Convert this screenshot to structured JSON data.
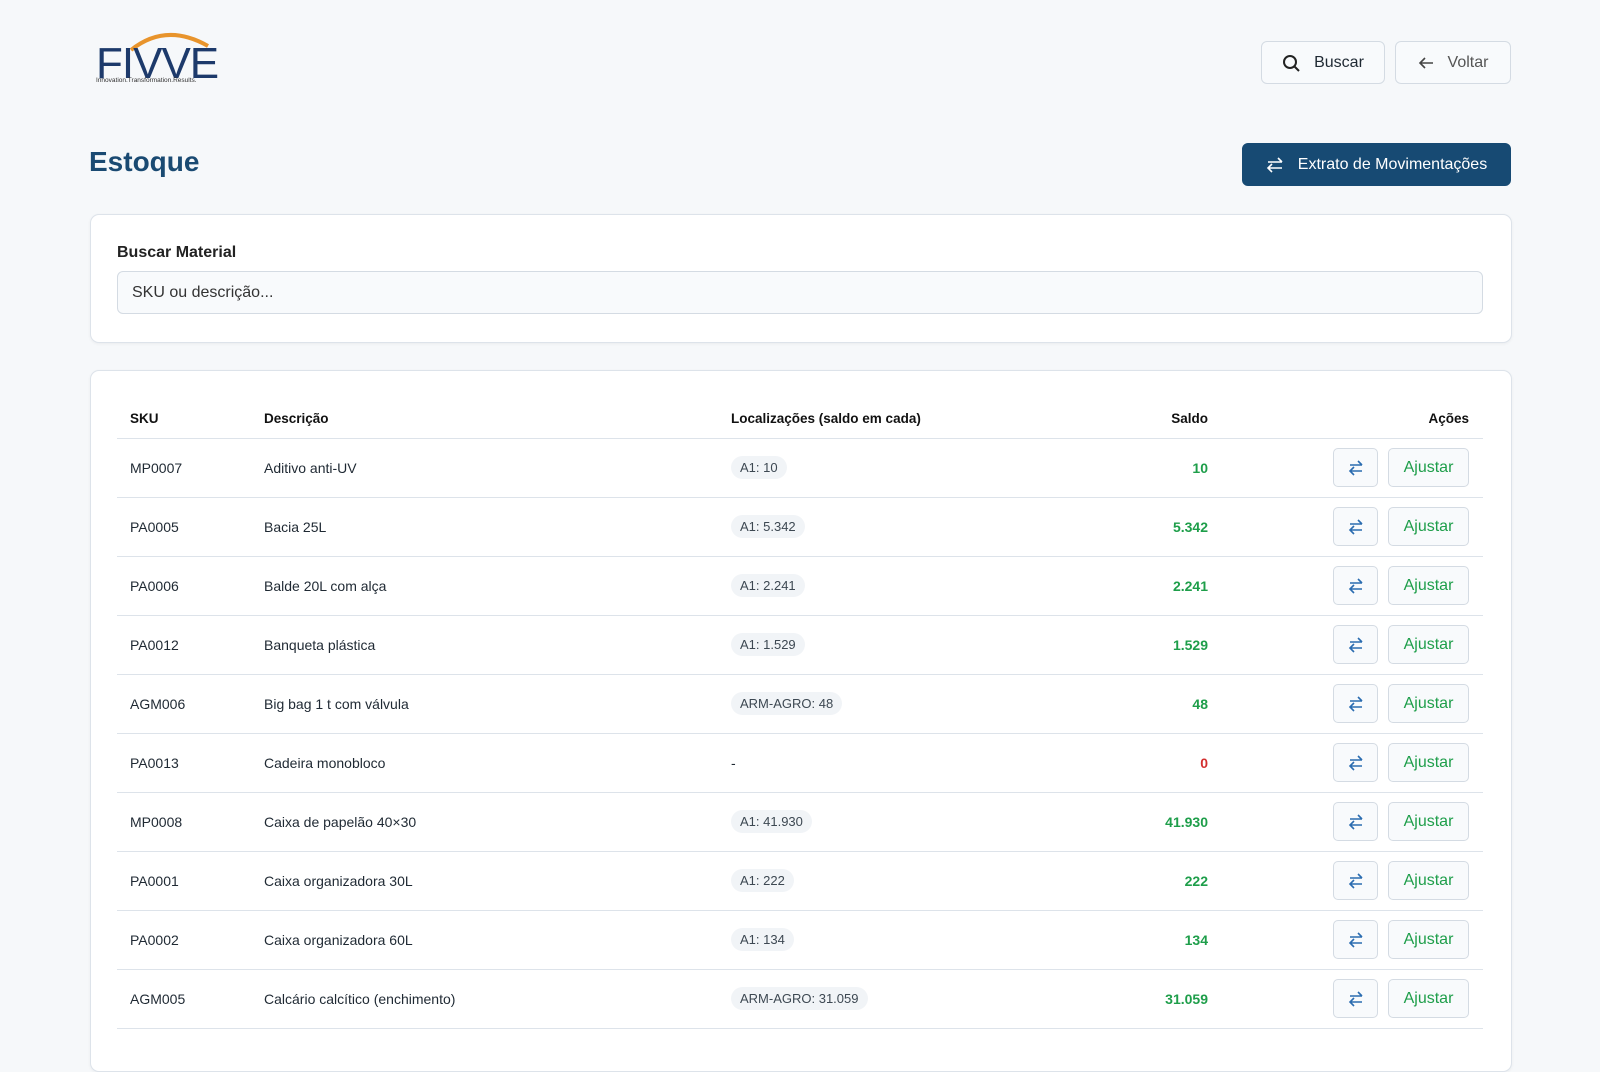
{
  "header": {
    "logo_text": "FIVVE",
    "logo_tagline": "Innovation.Transformation.Results.",
    "search_button": "Buscar",
    "back_button": "Voltar"
  },
  "page": {
    "title": "Estoque",
    "action_button": "Extrato de Movimentações"
  },
  "search": {
    "label": "Buscar Material",
    "placeholder": "SKU ou descrição..."
  },
  "table": {
    "columns": [
      "SKU",
      "Descrição",
      "Localizações (saldo em cada)",
      "Saldo",
      "Ações"
    ],
    "adjust_label": "Ajustar",
    "empty_location": "-",
    "rows": [
      {
        "sku": "MP0007",
        "description": "Aditivo anti-UV",
        "locations": [
          "A1: 10"
        ],
        "saldo": "10"
      },
      {
        "sku": "PA0005",
        "description": "Bacia 25L",
        "locations": [
          "A1: 5.342"
        ],
        "saldo": "5.342"
      },
      {
        "sku": "PA0006",
        "description": "Balde 20L com alça",
        "locations": [
          "A1: 2.241"
        ],
        "saldo": "2.241"
      },
      {
        "sku": "PA0012",
        "description": "Banqueta plástica",
        "locations": [
          "A1: 1.529"
        ],
        "saldo": "1.529"
      },
      {
        "sku": "AGM006",
        "description": "Big bag 1 t com válvula",
        "locations": [
          "ARM-AGRO: 48"
        ],
        "saldo": "48"
      },
      {
        "sku": "PA0013",
        "description": "Cadeira monobloco",
        "locations": [],
        "saldo": "0"
      },
      {
        "sku": "MP0008",
        "description": "Caixa de papelão 40×30",
        "locations": [
          "A1: 41.930"
        ],
        "saldo": "41.930"
      },
      {
        "sku": "PA0001",
        "description": "Caixa organizadora 30L",
        "locations": [
          "A1: 222"
        ],
        "saldo": "222"
      },
      {
        "sku": "PA0002",
        "description": "Caixa organizadora 60L",
        "locations": [
          "A1: 134"
        ],
        "saldo": "134"
      },
      {
        "sku": "AGM005",
        "description": "Calcário calcítico (enchimento)",
        "locations": [
          "ARM-AGRO: 31.059"
        ],
        "saldo": "31.059"
      }
    ]
  }
}
